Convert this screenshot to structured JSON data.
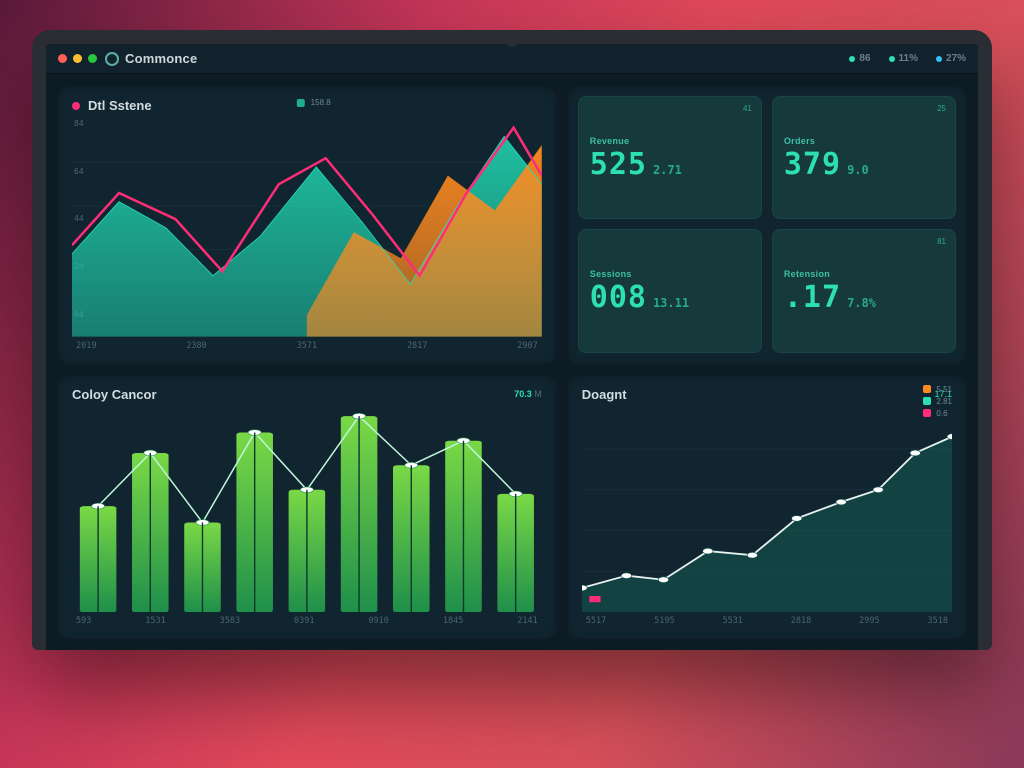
{
  "titlebar": {
    "traffic_light_colors": [
      "#ff5f57",
      "#febc2e",
      "#28c840"
    ],
    "brand_label": "Commonce",
    "brand_icon_color": "#5ab0a6",
    "right_items": [
      {
        "label": "86",
        "dot": "#2de0b4"
      },
      {
        "label": "11%",
        "dot": "#2de0b4"
      },
      {
        "label": "27%",
        "dot": "#38bdf8"
      }
    ]
  },
  "colors": {
    "bg": "#0d1b24",
    "panel": "#112530",
    "card": "#163a3b",
    "grid": "#1a3340",
    "text": "#d3dde0",
    "muted": "#4a6670",
    "teal": "#1fc7a6",
    "teal_line": "#17e0b0",
    "pink": "#ff2d78",
    "orange": "#ff8a1f",
    "green_grad_top": "#7ad946",
    "green_grad_bot": "#1f8f4a"
  },
  "area_chart": {
    "type": "area",
    "title": "Dtl Sstene",
    "legend_dot": "#ff2d78",
    "mini_legend_label": "158.8",
    "y_ticks": [
      "84",
      "64",
      "44",
      "24",
      "04"
    ],
    "x_ticks": [
      "2019",
      "2380",
      "3571",
      "2817",
      "2907"
    ],
    "xlim": [
      0,
      100
    ],
    "ylim": [
      0,
      100
    ],
    "series": [
      {
        "name": "teal-fill",
        "color": "#1aa890",
        "stroke": "#22e0b6",
        "points": [
          [
            0,
            38
          ],
          [
            10,
            62
          ],
          [
            20,
            50
          ],
          [
            30,
            28
          ],
          [
            40,
            46
          ],
          [
            52,
            78
          ],
          [
            62,
            52
          ],
          [
            72,
            24
          ],
          [
            82,
            60
          ],
          [
            92,
            92
          ],
          [
            100,
            70
          ]
        ]
      },
      {
        "name": "orange-fill",
        "color": "#ff8a1f",
        "stroke": "#ffb14a",
        "points": [
          [
            50,
            10
          ],
          [
            60,
            48
          ],
          [
            70,
            36
          ],
          [
            80,
            74
          ],
          [
            90,
            58
          ],
          [
            100,
            88
          ]
        ]
      },
      {
        "name": "pink-line",
        "stroke": "#ff2d78",
        "stroke_width": 2.5,
        "points": [
          [
            0,
            42
          ],
          [
            10,
            66
          ],
          [
            22,
            54
          ],
          [
            32,
            30
          ],
          [
            44,
            70
          ],
          [
            54,
            82
          ],
          [
            64,
            56
          ],
          [
            74,
            28
          ],
          [
            84,
            66
          ],
          [
            94,
            96
          ],
          [
            100,
            74
          ]
        ]
      }
    ]
  },
  "metric_cards": {
    "cards": [
      {
        "label": "Revenue",
        "big": "525",
        "small": "2.71",
        "badge": "41"
      },
      {
        "label": "Orders",
        "big": "379",
        "small": "9.0",
        "badge": "25"
      },
      {
        "label": "Sessions",
        "big": "008",
        "small": "13.11",
        "badge": ""
      },
      {
        "label": "Retension",
        "big": ".17",
        "small": "7.8%",
        "badge": "81"
      }
    ]
  },
  "bar_chart": {
    "type": "bar",
    "title": "Coloy Cancor",
    "sub_value": "70.3",
    "sub_unit": "M",
    "x_ticks": [
      "593",
      "1531",
      "3583",
      "0391",
      "0910",
      "1845",
      "2141"
    ],
    "bars": [
      52,
      78,
      44,
      88,
      60,
      96,
      72,
      84,
      58
    ],
    "bar_fill_top": "#7ad946",
    "bar_fill_bot": "#1f8f4a",
    "line_stroke": "#bff7d9",
    "dot_fill": "#ffffff"
  },
  "line_chart": {
    "type": "line",
    "title": "Doagnt",
    "sub_value": "17.1",
    "legend": [
      {
        "label": "5.51",
        "color": "#ff8a1f"
      },
      {
        "label": "2.81",
        "color": "#2de0b4"
      },
      {
        "label": "0.6",
        "color": "#ff2d78"
      }
    ],
    "x_ticks": [
      "5517",
      "5195",
      "5531",
      "2818",
      "2995",
      "3518"
    ],
    "stroke": "#e6f2ef",
    "fill": "#15574f",
    "points": [
      [
        0,
        12
      ],
      [
        12,
        18
      ],
      [
        22,
        16
      ],
      [
        34,
        30
      ],
      [
        46,
        28
      ],
      [
        58,
        46
      ],
      [
        70,
        54
      ],
      [
        80,
        60
      ],
      [
        90,
        78
      ],
      [
        100,
        86
      ]
    ]
  }
}
